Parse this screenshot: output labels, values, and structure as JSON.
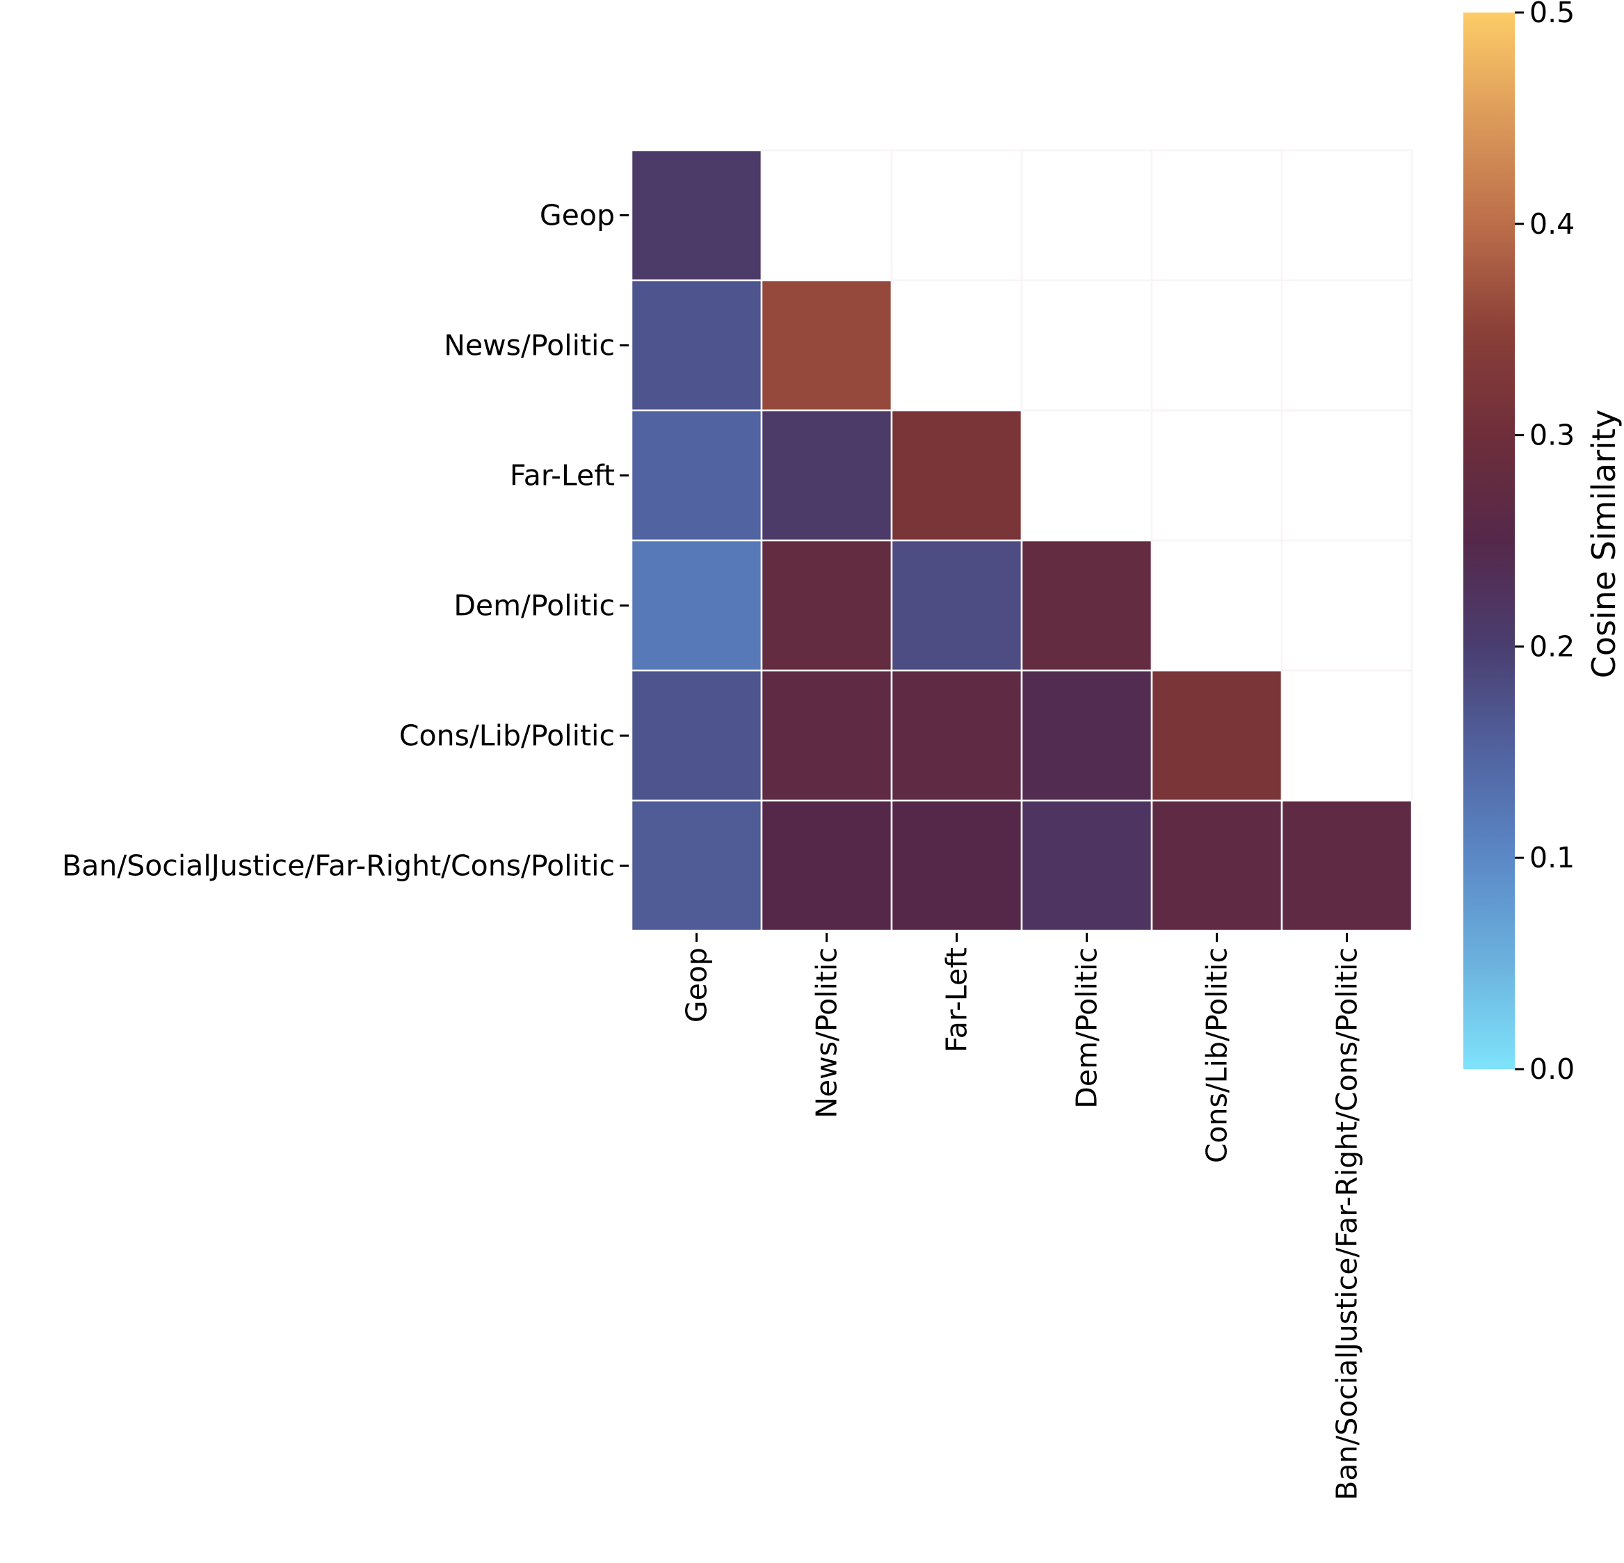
{
  "chart_data": {
    "type": "heatmap",
    "title": "",
    "xlabel": "",
    "ylabel": "",
    "categories": [
      "Geop",
      "News/Politic",
      "Far-Left",
      "Dem/Politic",
      "Cons/Lib/Politic",
      "Ban/SocialJustice/Far-Right/Cons/Politic"
    ],
    "mask": "upper-triangle (above diagonal hidden)",
    "values": [
      [
        0.21,
        null,
        null,
        null,
        null,
        null
      ],
      [
        0.17,
        0.36,
        null,
        null,
        null,
        null
      ],
      [
        0.15,
        0.21,
        0.32,
        null,
        null,
        null
      ],
      [
        0.12,
        0.28,
        0.18,
        0.28,
        null,
        null
      ],
      [
        0.17,
        0.27,
        0.27,
        0.24,
        0.32,
        null
      ],
      [
        0.16,
        0.25,
        0.25,
        0.22,
        0.27,
        0.27
      ]
    ],
    "colorbar": {
      "label": "Cosine Similarity",
      "range": [
        0.0,
        0.5
      ],
      "ticks": [
        "0.0",
        "0.1",
        "0.2",
        "0.3",
        "0.4",
        "0.5"
      ],
      "colorscale": [
        [
          0.0,
          "#7fe3fb"
        ],
        [
          0.05,
          "#6bb2de"
        ],
        [
          0.1,
          "#5b88c6"
        ],
        [
          0.15,
          "#5163a0"
        ],
        [
          0.2,
          "#4a3e70"
        ],
        [
          0.25,
          "#55284a"
        ],
        [
          0.3,
          "#6e2e3a"
        ],
        [
          0.35,
          "#8b4038"
        ],
        [
          0.4,
          "#bc6e4a"
        ],
        [
          0.45,
          "#dc9a5a"
        ],
        [
          0.5,
          "#fdcc67"
        ]
      ]
    },
    "grid": false,
    "legend": "colorbar-right"
  }
}
